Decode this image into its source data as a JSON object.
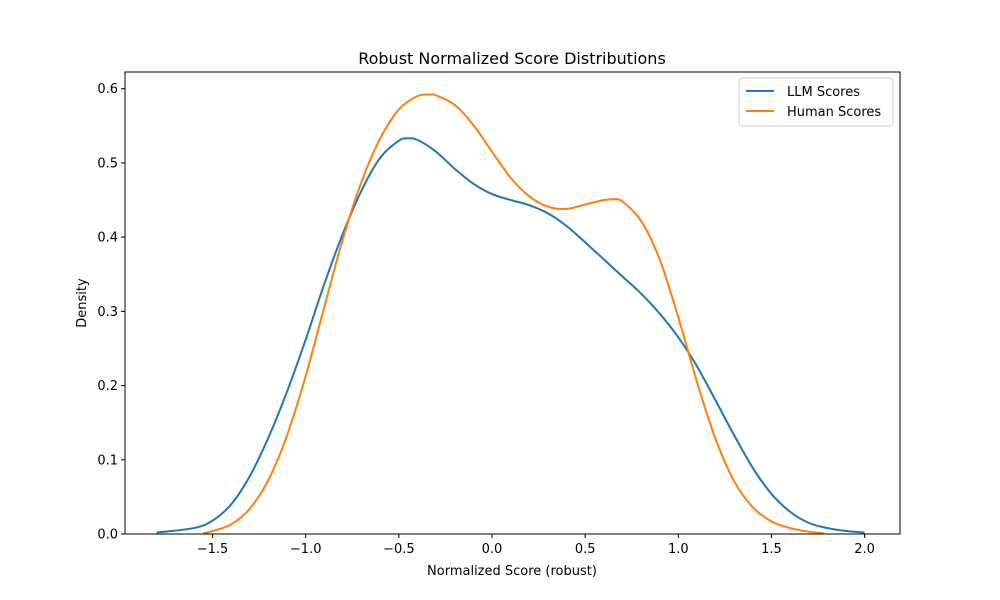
{
  "chart_data": {
    "type": "line",
    "title": "Robust Normalized Score Distributions",
    "xlabel": "Normalized Score (robust)",
    "ylabel": "Density",
    "xlim": [
      -1.97,
      2.19
    ],
    "ylim": [
      0.0,
      0.6225
    ],
    "xticks": [
      -1.5,
      -1.0,
      -0.5,
      0.0,
      0.5,
      1.0,
      1.5,
      2.0
    ],
    "xtick_labels": [
      "−1.5",
      "−1.0",
      "−0.5",
      "0.0",
      "0.5",
      "1.0",
      "1.5",
      "2.0"
    ],
    "yticks": [
      0.0,
      0.1,
      0.2,
      0.3,
      0.4,
      0.5,
      0.6
    ],
    "ytick_labels": [
      "0.0",
      "0.1",
      "0.2",
      "0.3",
      "0.4",
      "0.5",
      "0.6"
    ],
    "grid": false,
    "legend_position": "top-right",
    "series": [
      {
        "name": "LLM Scores",
        "color": "#1f77b4",
        "points": [
          [
            -1.8,
            0.002
          ],
          [
            -1.6,
            0.008
          ],
          [
            -1.5,
            0.018
          ],
          [
            -1.4,
            0.04
          ],
          [
            -1.3,
            0.078
          ],
          [
            -1.2,
            0.13
          ],
          [
            -1.1,
            0.192
          ],
          [
            -1.0,
            0.262
          ],
          [
            -0.9,
            0.337
          ],
          [
            -0.8,
            0.405
          ],
          [
            -0.7,
            0.463
          ],
          [
            -0.6,
            0.507
          ],
          [
            -0.5,
            0.53
          ],
          [
            -0.45,
            0.533
          ],
          [
            -0.4,
            0.531
          ],
          [
            -0.3,
            0.515
          ],
          [
            -0.2,
            0.492
          ],
          [
            -0.1,
            0.472
          ],
          [
            0.0,
            0.458
          ],
          [
            0.1,
            0.45
          ],
          [
            0.2,
            0.443
          ],
          [
            0.3,
            0.432
          ],
          [
            0.4,
            0.415
          ],
          [
            0.5,
            0.393
          ],
          [
            0.6,
            0.37
          ],
          [
            0.7,
            0.347
          ],
          [
            0.8,
            0.324
          ],
          [
            0.9,
            0.297
          ],
          [
            1.0,
            0.265
          ],
          [
            1.1,
            0.226
          ],
          [
            1.2,
            0.18
          ],
          [
            1.3,
            0.133
          ],
          [
            1.4,
            0.089
          ],
          [
            1.5,
            0.054
          ],
          [
            1.6,
            0.03
          ],
          [
            1.7,
            0.015
          ],
          [
            1.8,
            0.008
          ],
          [
            1.9,
            0.004
          ],
          [
            2.0,
            0.002
          ]
        ]
      },
      {
        "name": "Human Scores",
        "color": "#ff7f0e",
        "points": [
          [
            -1.55,
            0.001
          ],
          [
            -1.5,
            0.004
          ],
          [
            -1.4,
            0.013
          ],
          [
            -1.3,
            0.034
          ],
          [
            -1.2,
            0.073
          ],
          [
            -1.1,
            0.133
          ],
          [
            -1.0,
            0.213
          ],
          [
            -0.9,
            0.306
          ],
          [
            -0.8,
            0.398
          ],
          [
            -0.7,
            0.475
          ],
          [
            -0.6,
            0.533
          ],
          [
            -0.5,
            0.572
          ],
          [
            -0.4,
            0.59
          ],
          [
            -0.33,
            0.592
          ],
          [
            -0.3,
            0.591
          ],
          [
            -0.2,
            0.578
          ],
          [
            -0.1,
            0.551
          ],
          [
            0.0,
            0.515
          ],
          [
            0.1,
            0.48
          ],
          [
            0.2,
            0.455
          ],
          [
            0.3,
            0.441
          ],
          [
            0.4,
            0.438
          ],
          [
            0.5,
            0.444
          ],
          [
            0.6,
            0.45
          ],
          [
            0.65,
            0.451
          ],
          [
            0.7,
            0.448
          ],
          [
            0.8,
            0.422
          ],
          [
            0.9,
            0.37
          ],
          [
            1.0,
            0.292
          ],
          [
            1.1,
            0.205
          ],
          [
            1.2,
            0.128
          ],
          [
            1.3,
            0.071
          ],
          [
            1.4,
            0.036
          ],
          [
            1.5,
            0.017
          ],
          [
            1.6,
            0.008
          ],
          [
            1.7,
            0.003
          ],
          [
            1.78,
            0.001
          ]
        ]
      }
    ]
  }
}
